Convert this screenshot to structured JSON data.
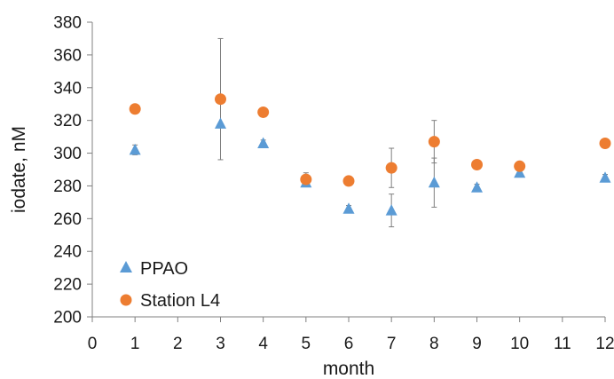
{
  "chart_data": {
    "type": "scatter",
    "xlabel": "month",
    "ylabel": "iodate, nM",
    "xlim": [
      0,
      12
    ],
    "ylim": [
      200,
      380
    ],
    "x_ticks": [
      0,
      1,
      2,
      3,
      4,
      5,
      6,
      7,
      8,
      9,
      10,
      11,
      12
    ],
    "y_ticks": [
      200,
      220,
      240,
      260,
      280,
      300,
      320,
      340,
      360,
      380
    ],
    "grid": false,
    "legend_position": "bottom-left",
    "series": [
      {
        "name": "PPAO",
        "marker": "triangle",
        "color": "#5b9bd5",
        "points": [
          {
            "x": 1,
            "y": 302,
            "err": 3
          },
          {
            "x": 3,
            "y": 318,
            "err": 0
          },
          {
            "x": 4,
            "y": 306,
            "err": 2
          },
          {
            "x": 5,
            "y": 282,
            "err": 2
          },
          {
            "x": 6,
            "y": 266,
            "err": 2
          },
          {
            "x": 7,
            "y": 265,
            "err": 10
          },
          {
            "x": 8,
            "y": 282,
            "err": 15
          },
          {
            "x": 9,
            "y": 279,
            "err": 2
          },
          {
            "x": 10,
            "y": 288,
            "err": 2
          },
          {
            "x": 12,
            "y": 285,
            "err": 2
          }
        ]
      },
      {
        "name": "Station L4",
        "marker": "circle",
        "color": "#ed7d31",
        "points": [
          {
            "x": 1,
            "y": 327,
            "err": 0
          },
          {
            "x": 3,
            "y": 333,
            "err": 37
          },
          {
            "x": 4,
            "y": 325,
            "err": 0
          },
          {
            "x": 5,
            "y": 284,
            "err": 4
          },
          {
            "x": 6,
            "y": 283,
            "err": 0
          },
          {
            "x": 7,
            "y": 291,
            "err": 12
          },
          {
            "x": 8,
            "y": 307,
            "err": 13
          },
          {
            "x": 9,
            "y": 293,
            "err": 0
          },
          {
            "x": 10,
            "y": 292,
            "err": 0
          },
          {
            "x": 12,
            "y": 306,
            "err": 0
          }
        ]
      }
    ]
  }
}
